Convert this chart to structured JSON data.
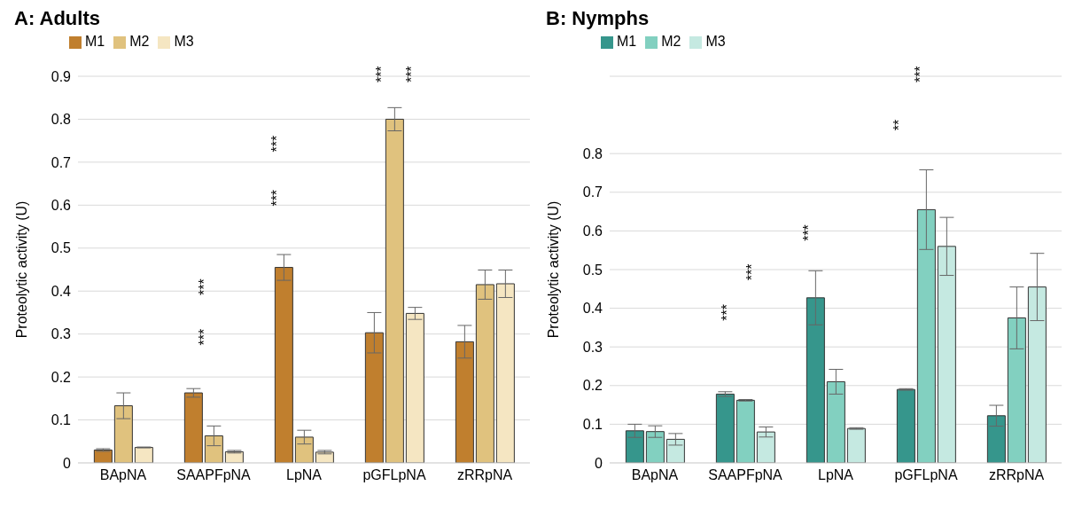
{
  "chart_data": [
    {
      "type": "bar",
      "title": "A: Adults",
      "ylabel": "Proteolytic activity (U)",
      "categories": [
        "BApNA",
        "SAAPFpNA",
        "LpNA",
        "pGFLpNA",
        "zRRpNA"
      ],
      "series": [
        {
          "name": "M1",
          "color": "#c07f2e",
          "values": [
            0.03,
            0.163,
            0.455,
            0.303,
            0.282
          ],
          "errors": [
            0.003,
            0.01,
            0.03,
            0.047,
            0.038
          ]
        },
        {
          "name": "M2",
          "color": "#e0c27e",
          "values": [
            0.133,
            0.063,
            0.06,
            0.8,
            0.415
          ],
          "errors": [
            0.03,
            0.023,
            0.016,
            0.027,
            0.034
          ]
        },
        {
          "name": "M3",
          "color": "#f5e6c2",
          "values": [
            0.036,
            0.026,
            0.025,
            0.348,
            0.417
          ],
          "errors": [
            0.001,
            0.003,
            0.004,
            0.014,
            0.032
          ]
        }
      ],
      "ylim": [
        0,
        0.9
      ],
      "yticks": [
        0,
        0.1,
        0.2,
        0.3,
        0.4,
        0.5,
        0.6,
        0.7,
        0.8,
        0.9
      ],
      "grid": "y",
      "legend": "top left",
      "annotations": [
        "***",
        "***",
        "***",
        "***",
        "***",
        "***"
      ]
    },
    {
      "type": "bar",
      "title": "B: Nymphs",
      "ylabel": "Proteolytic activity (U)",
      "categories": [
        "BApNA",
        "SAAPFpNA",
        "LpNA",
        "pGFLpNA",
        "zRRpNA"
      ],
      "series": [
        {
          "name": "M1",
          "color": "#36968c",
          "values": [
            0.083,
            0.178,
            0.427,
            0.19,
            0.122
          ],
          "errors": [
            0.017,
            0.006,
            0.07,
            0.002,
            0.027
          ]
        },
        {
          "name": "M2",
          "color": "#82d0c0",
          "values": [
            0.081,
            0.162,
            0.21,
            0.655,
            0.375
          ],
          "errors": [
            0.015,
            0.002,
            0.032,
            0.103,
            0.08
          ]
        },
        {
          "name": "M3",
          "color": "#c5e9e1",
          "values": [
            0.061,
            0.08,
            0.089,
            0.56,
            0.455
          ],
          "errors": [
            0.015,
            0.013,
            0.002,
            0.075,
            0.087
          ]
        }
      ],
      "ylim": [
        0,
        1
      ],
      "yticks": [
        0,
        0.1,
        0.2,
        0.3,
        0.4,
        0.5,
        0.6,
        0.7,
        0.8
      ],
      "grid": "y",
      "legend": "top left",
      "annotations": [
        "***",
        "***",
        "***",
        "**",
        "***"
      ]
    }
  ]
}
